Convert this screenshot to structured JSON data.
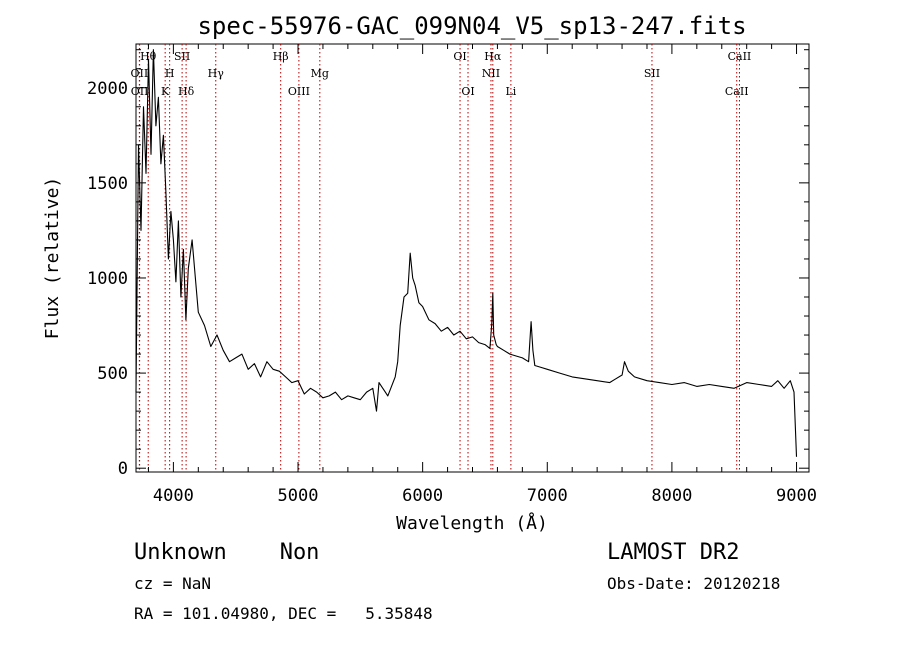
{
  "chart_data": {
    "type": "line",
    "title": "spec-55976-GAC_099N04_V5_sp13-247.fits",
    "xlabel": "Wavelength (Å)",
    "ylabel": "Flux (relative)",
    "xlim": [
      3700,
      9100
    ],
    "ylim": [
      -20,
      2230
    ],
    "x_ticks": [
      4000,
      5000,
      6000,
      7000,
      8000,
      9000
    ],
    "y_ticks": [
      0,
      500,
      1000,
      1500,
      2000
    ],
    "grid": false,
    "series": [
      {
        "x": [
          3700,
          3720,
          3740,
          3760,
          3780,
          3800,
          3820,
          3840,
          3860,
          3880,
          3900,
          3920,
          3940,
          3960,
          3980,
          4000,
          4020,
          4040,
          4060,
          4080,
          4100,
          4120,
          4150,
          4200,
          4250,
          4300,
          4350,
          4400,
          4450,
          4500,
          4550,
          4600,
          4650,
          4700,
          4750,
          4800,
          4850,
          4900,
          4950,
          5000,
          5050,
          5100,
          5150,
          5200,
          5250,
          5300,
          5350,
          5400,
          5450,
          5500,
          5550,
          5600,
          5630,
          5650,
          5680,
          5700,
          5720,
          5750,
          5780,
          5800,
          5820,
          5850,
          5880,
          5900,
          5920,
          5940,
          5970,
          6000,
          6050,
          6100,
          6150,
          6200,
          6250,
          6300,
          6350,
          6400,
          6450,
          6500,
          6540,
          6555,
          6563,
          6570,
          6590,
          6600,
          6650,
          6700,
          6750,
          6800,
          6850,
          6870,
          6885,
          6900,
          6950,
          7000,
          7100,
          7200,
          7300,
          7400,
          7500,
          7550,
          7600,
          7620,
          7650,
          7700,
          7800,
          7900,
          8000,
          8100,
          8200,
          8300,
          8400,
          8500,
          8600,
          8700,
          8800,
          8850,
          8900,
          8950,
          8980,
          9000
        ],
        "y": [
          400,
          1700,
          1250,
          1900,
          1550,
          2150,
          1650,
          2200,
          1800,
          1950,
          1600,
          1750,
          1450,
          1100,
          1350,
          1200,
          980,
          1300,
          900,
          1150,
          780,
          1050,
          1200,
          820,
          750,
          640,
          700,
          620,
          560,
          580,
          600,
          520,
          550,
          480,
          560,
          520,
          510,
          480,
          450,
          460,
          390,
          420,
          400,
          370,
          380,
          400,
          360,
          380,
          370,
          360,
          400,
          420,
          300,
          450,
          420,
          400,
          380,
          430,
          480,
          560,
          750,
          900,
          920,
          1130,
          1000,
          960,
          870,
          850,
          780,
          760,
          720,
          740,
          700,
          720,
          680,
          690,
          660,
          650,
          630,
          760,
          920,
          700,
          650,
          640,
          620,
          600,
          590,
          580,
          560,
          770,
          620,
          540,
          530,
          520,
          500,
          480,
          470,
          460,
          450,
          470,
          490,
          560,
          510,
          480,
          460,
          450,
          440,
          450,
          430,
          440,
          430,
          420,
          450,
          440,
          430,
          460,
          420,
          460,
          400,
          60
        ]
      }
    ],
    "lines": [
      {
        "label": "Hθ",
        "x": 3798,
        "row": 0
      },
      {
        "label": "OII",
        "x": 3727,
        "row": 1
      },
      {
        "label": "OII",
        "x": 3729,
        "row": 2
      },
      {
        "label": "H",
        "x": 3970,
        "row": 1
      },
      {
        "label": "K",
        "x": 3934,
        "row": 2
      },
      {
        "label": "SII",
        "x": 4070,
        "row": 0
      },
      {
        "label": "Hδ",
        "x": 4102,
        "row": 2
      },
      {
        "label": "Hγ",
        "x": 4340,
        "row": 1
      },
      {
        "label": "Hβ",
        "x": 4861,
        "row": 0
      },
      {
        "label": "OIII",
        "x": 5007,
        "row": 2
      },
      {
        "label": "Mg",
        "x": 5175,
        "row": 1
      },
      {
        "label": "OI",
        "x": 6300,
        "row": 0
      },
      {
        "label": "OI",
        "x": 6364,
        "row": 2
      },
      {
        "label": "Hα",
        "x": 6563,
        "row": 0
      },
      {
        "label": "NII",
        "x": 6548,
        "row": 1
      },
      {
        "label": "Li",
        "x": 6708,
        "row": 2
      },
      {
        "label": "SII",
        "x": 7840,
        "row": 1
      },
      {
        "label": "CaII",
        "x": 8542,
        "row": 0
      },
      {
        "label": "CaII",
        "x": 8520,
        "row": 2
      }
    ]
  },
  "footer": {
    "class_text": "Unknown    Non",
    "survey": "LAMOST DR2",
    "cz_text": "cz = NaN",
    "obs_date": "Obs-Date: 20120218",
    "coords": "RA = 101.04980, DEC =   5.35848"
  }
}
